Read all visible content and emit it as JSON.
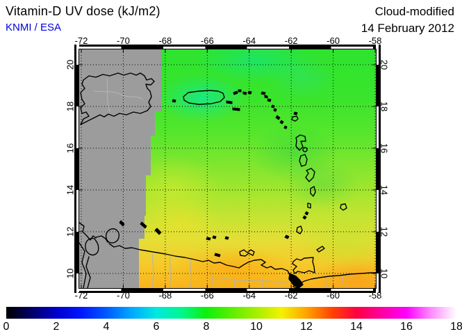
{
  "header": {
    "title": "Vitamin-D UV dose (kJ/m2)",
    "source": "KNMI / ESA",
    "source_color": "#0000dd",
    "mode": "Cloud-modified",
    "date": "14 February 2012"
  },
  "map": {
    "lon_ticks": [
      "-72",
      "-70",
      "-68",
      "-66",
      "-64",
      "-62",
      "-60",
      "-58"
    ],
    "lat_ticks": [
      "20",
      "18",
      "16",
      "14",
      "12",
      "10"
    ],
    "nodata_color": "#9c9c9c",
    "grid_style": "dotted-black-every-2-degrees",
    "coastline_color": "#000000",
    "river_border_color": "#b3b3b3"
  },
  "colorbar": {
    "tick_labels": [
      "0",
      "2",
      "4",
      "6",
      "8",
      "10",
      "12",
      "14",
      "16",
      "18"
    ],
    "min": 0,
    "max": 18,
    "stops": [
      {
        "value": 0,
        "color": "#000000"
      },
      {
        "value": 1,
        "color": "#000066"
      },
      {
        "value": 2,
        "color": "#0000cc"
      },
      {
        "value": 3,
        "color": "#0018ff"
      },
      {
        "value": 4,
        "color": "#0059ff"
      },
      {
        "value": 5,
        "color": "#00a8ff"
      },
      {
        "value": 6,
        "color": "#00e8e0"
      },
      {
        "value": 7,
        "color": "#00f78e"
      },
      {
        "value": 8,
        "color": "#0cf00c"
      },
      {
        "value": 9,
        "color": "#5cee00"
      },
      {
        "value": 10,
        "color": "#a8ee00"
      },
      {
        "value": 11,
        "color": "#f2f200"
      },
      {
        "value": 12,
        "color": "#ffa300"
      },
      {
        "value": 13,
        "color": "#ff4500"
      },
      {
        "value": 14,
        "color": "#ff0040"
      },
      {
        "value": 15,
        "color": "#ff00a0"
      },
      {
        "value": 16,
        "color": "#ff00ff"
      },
      {
        "value": 17,
        "color": "#ff8cff"
      },
      {
        "value": 18,
        "color": "#ffffff"
      }
    ]
  },
  "chart_data": {
    "type": "heatmap",
    "title": "Vitamin-D UV dose (kJ/m2)",
    "subtitle": "Cloud-modified — 14 February 2012",
    "units": "kJ/m2",
    "lon_range": [
      -72,
      -58
    ],
    "lat_range": [
      10,
      20
    ],
    "scale_range": [
      0,
      18
    ],
    "legend_position": "bottom",
    "grid": true,
    "no_data_region": "west of approx -68.2 longitude (grey)",
    "observed_values": [
      {
        "area": "northern Caribbean sea (general)",
        "value": 8
      },
      {
        "area": "around Puerto Rico (cyan patch)",
        "value": 7
      },
      {
        "area": "central basin yellow-green",
        "value": 9.5
      },
      {
        "area": "southern yellow band near 11N",
        "value": 10.5
      },
      {
        "area": "Venezuela coastal orange band near 10N",
        "value": 11.5
      },
      {
        "area": "south-east corner orange",
        "value": 11
      }
    ]
  }
}
